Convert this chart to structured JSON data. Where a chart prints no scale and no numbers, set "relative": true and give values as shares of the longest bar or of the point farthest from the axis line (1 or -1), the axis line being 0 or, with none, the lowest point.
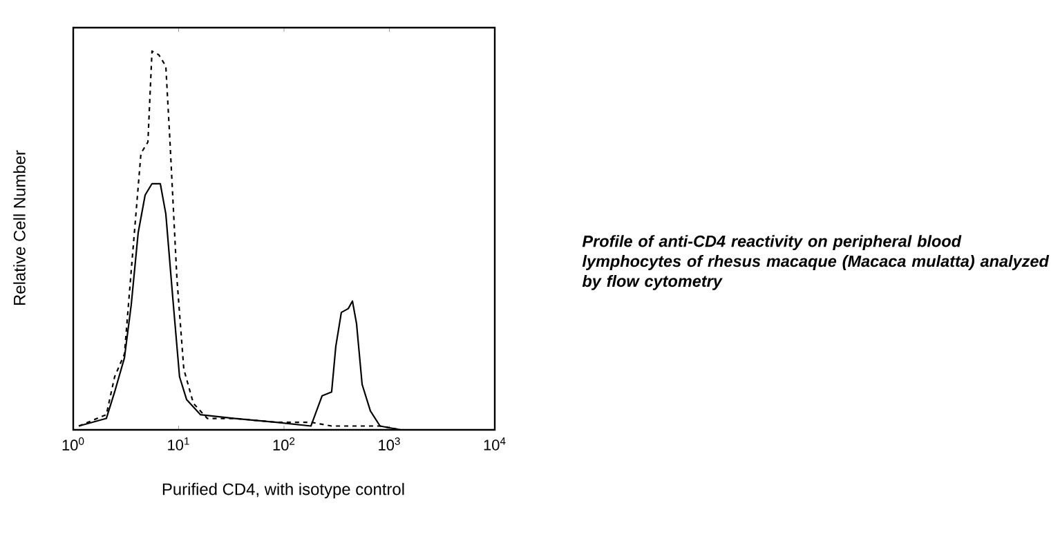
{
  "chart_data": {
    "type": "line",
    "relative": true,
    "log": "x",
    "xlabel": "Purified CD4, with isotype control",
    "ylabel": "Relative Cell Number",
    "xlim": [
      1,
      10000
    ],
    "xticks": [
      {
        "value": 1,
        "label": "10$^{0}$"
      },
      {
        "value": 10,
        "label": "10$^{1}$"
      },
      {
        "value": 100,
        "label": "10$^{2}$"
      },
      {
        "value": 1000,
        "label": "10$^{3}$"
      },
      {
        "value": 10000,
        "label": "10$^{4}$"
      }
    ],
    "annotations": [
      "Profile of anti-CD4 reactivity on peripheral blood lymphocytes of rhesus macaque (Macaca mulatta) analyzed by flow cytometry"
    ],
    "series": [
      {
        "color": "#000000",
        "line_style": "dashed",
        "x": [
          1.13,
          2.06,
          2.47,
          3.06,
          3.55,
          4.39,
          5.11,
          5.59,
          6.5,
          7.56,
          8.28,
          9.63,
          11.2,
          13.8,
          18.7,
          34.2,
          84.7,
          180,
          283,
          551,
          815,
          1280,
          7850
        ],
        "values": [
          0.01,
          0.04,
          0.14,
          0.2,
          0.42,
          0.73,
          0.76,
          1.0,
          0.99,
          0.96,
          0.76,
          0.4,
          0.16,
          0.07,
          0.03,
          0.03,
          0.02,
          0.02,
          0.01,
          0.01,
          0.01,
          0.0,
          0.0
        ]
      },
      {
        "color": "#000000",
        "line_style": "solid",
        "x": [
          1.13,
          2.06,
          2.47,
          3.06,
          3.55,
          4.13,
          4.81,
          5.59,
          6.7,
          7.56,
          8.79,
          10.2,
          11.9,
          16.1,
          34.2,
          84.7,
          180,
          230,
          283,
          310,
          350,
          407,
          446,
          488,
          551,
          660,
          815,
          1280,
          7850
        ],
        "values": [
          0.01,
          0.03,
          0.1,
          0.19,
          0.33,
          0.52,
          0.62,
          0.65,
          0.65,
          0.57,
          0.35,
          0.14,
          0.08,
          0.04,
          0.03,
          0.02,
          0.01,
          0.09,
          0.1,
          0.22,
          0.31,
          0.32,
          0.34,
          0.28,
          0.12,
          0.05,
          0.01,
          0.0,
          0.0
        ]
      }
    ]
  }
}
